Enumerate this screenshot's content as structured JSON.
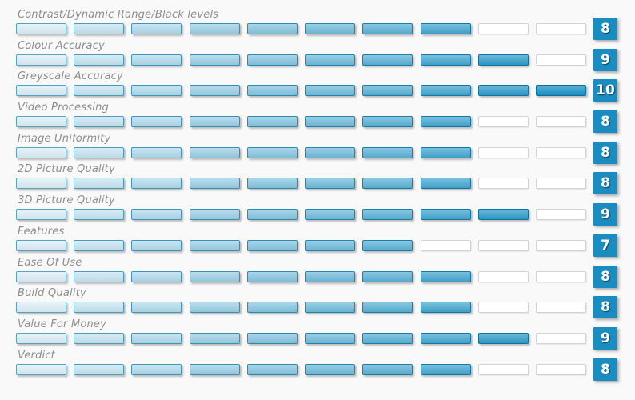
{
  "chart_data": {
    "type": "bar",
    "categories": [
      "Contrast/Dynamic Range/Black levels",
      "Colour Accuracy",
      "Greyscale Accuracy",
      "Video Processing",
      "Image Uniformity",
      "2D Picture Quality",
      "3D Picture Quality",
      "Features",
      "Ease Of Use",
      "Build Quality",
      "Value For Money",
      "Verdict"
    ],
    "values": [
      8,
      9,
      10,
      8,
      8,
      8,
      9,
      7,
      8,
      8,
      9,
      8
    ],
    "ylim": [
      0,
      10
    ],
    "segments_per_row": 10,
    "title": "",
    "xlabel": "",
    "ylabel": "",
    "legend": "none",
    "grid": false
  },
  "colors": {
    "background": "#f9f9f9",
    "label_text": "#8d8d8d",
    "badge_background": "#1a8cc0",
    "badge_text": "#ffffff",
    "segment_fills": [
      "#ddeff8",
      "#c7e5f2",
      "#b2dbed",
      "#9cd0e7",
      "#86c6e2",
      "#71bcdc",
      "#5bb2d7",
      "#45a7d1",
      "#309dcc",
      "#1a93c6"
    ],
    "segment_borders": [
      "#55a3bc",
      "#4a9db9",
      "#4097b5",
      "#3691b2",
      "#2c8bae",
      "#2285ab",
      "#1a7fa7",
      "#1379a4",
      "#0e74a0",
      "#0a6f9c"
    ],
    "empty_fill": "#ffffff",
    "empty_border": "#d3d3d3"
  }
}
